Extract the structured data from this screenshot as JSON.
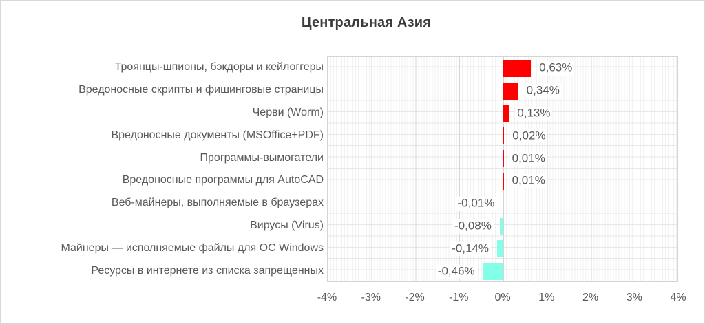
{
  "window": {
    "background": "#ffffff",
    "border_color": "#d8d8d8"
  },
  "chart_data": {
    "type": "bar",
    "orientation": "horizontal",
    "title": "Центральная Азия",
    "categories": [
      "Троянцы-шпионы, бэкдоры и кейлоггеры",
      "Вредоносные скрипты и фишинговые страницы",
      "Черви (Worm)",
      "Вредоносные документы (MSOffice+PDF)",
      "Программы-вымогатели",
      "Вредоносные программы для AutoCAD",
      "Веб-майнеры, выполняемые в браузерах",
      "Вирусы (Virus)",
      "Майнеры — исполняемые файлы для ОС Windows",
      "Ресурсы в интернете из списка запрещенных"
    ],
    "values": [
      0.63,
      0.34,
      0.13,
      0.02,
      0.01,
      0.01,
      -0.01,
      -0.08,
      -0.14,
      -0.46
    ],
    "value_labels": [
      "0,63%",
      "0,34%",
      "0,13%",
      "0,02%",
      "0,01%",
      "0,01%",
      "-0,01%",
      "-0,08%",
      "-0,14%",
      "-0,46%"
    ],
    "x_ticks": [
      {
        "value": -4,
        "label": "-4%"
      },
      {
        "value": -3,
        "label": "-3%"
      },
      {
        "value": -2,
        "label": "-2%"
      },
      {
        "value": -1,
        "label": "-1%"
      },
      {
        "value": 0,
        "label": "0%"
      },
      {
        "value": 1,
        "label": "1%"
      },
      {
        "value": 2,
        "label": "2%"
      },
      {
        "value": 3,
        "label": "3%"
      },
      {
        "value": 4,
        "label": "4%"
      }
    ],
    "xlim": [
      -4,
      4
    ],
    "grid": "major and minor vertical gridlines, horizontal half-row gridlines",
    "legend": "none",
    "colors": {
      "positive_bar": "#ff0000",
      "negative_bar": "#82ffe6",
      "title_text": "#3c3c3c",
      "label_text": "#595959",
      "gridline_major": "#d4d4d4",
      "gridline_minor": "#f2f2f2"
    }
  }
}
